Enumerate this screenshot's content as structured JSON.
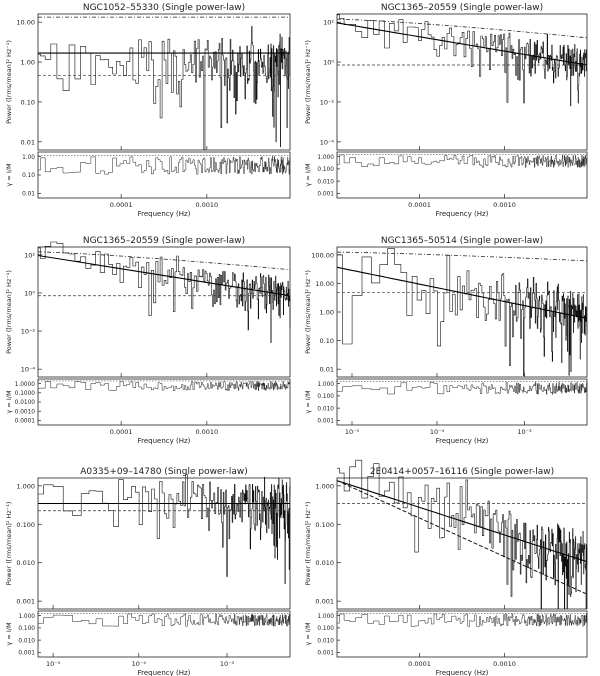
{
  "figure": {
    "panels": [
      {
        "title": "NGC1052–55330 (Single power-law)",
        "xlabel": "Frequency (Hz)",
        "ylabel_top": "Power ([rms/mean]² Hz⁻¹)",
        "ylabel_bottom": "γ = I/M",
        "x_ticks": [
          "0.0001",
          "0.0010"
        ],
        "top_ticks": [
          "10.00",
          "1.00",
          "0.10",
          "0.01"
        ],
        "bottom_ticks": [
          "1.00",
          "0.10",
          "0.01"
        ]
      },
      {
        "title": "NGC1365–20559 (Single power-law)",
        "xlabel": "Frequency (Hz)",
        "ylabel_top": "Power ([rms/mean]² Hz⁻¹)",
        "ylabel_bottom": "γ = I/M",
        "x_ticks": [
          "0.0001",
          "0.0010"
        ],
        "top_ticks": [
          "10²",
          "10⁰",
          "10⁻²",
          "10⁻⁴"
        ],
        "bottom_ticks": [
          "1.000",
          "0.100",
          "0.010",
          "0.001"
        ]
      },
      {
        "title": "NGC1365–20559 (Single power-law)",
        "xlabel": "Frequency (Hz)",
        "ylabel_top": "Power ([rms/mean]² Hz⁻¹)",
        "ylabel_bottom": "γ = I/M",
        "x_ticks": [
          "0.0001",
          "0.0010"
        ],
        "top_ticks": [
          "10²",
          "10⁰",
          "10⁻²",
          "10⁻⁴"
        ],
        "bottom_ticks": [
          "1.0000",
          "0.1000",
          "0.0100",
          "0.0010",
          "0.0001"
        ]
      },
      {
        "title": "NGC1365–50514 (Single power-law)",
        "xlabel": "Frequency (Hz)",
        "ylabel_top": "Power ([rms/mean]² Hz⁻¹)",
        "ylabel_bottom": "γ = I/M",
        "x_ticks": [
          "10⁻⁵",
          "10⁻⁴",
          "10⁻³"
        ],
        "top_ticks": [
          "100.00",
          "10.00",
          "1.00",
          "0.10",
          "0.01"
        ],
        "bottom_ticks": [
          "1.000",
          "0.100",
          "0.010",
          "0.001"
        ]
      },
      {
        "title": "A0335+09–14780 (Single power-law)",
        "xlabel": "Frequency (Hz)",
        "ylabel_top": "Power ([rms/mean]² Hz⁻¹)",
        "ylabel_bottom": "γ = I/M",
        "x_ticks": [
          "10⁻⁵",
          "10⁻⁴",
          "10⁻³"
        ],
        "top_ticks": [
          "1.000",
          "0.100",
          "0.010",
          "0.001"
        ],
        "bottom_ticks": [
          "1.000",
          "0.100",
          "0.010",
          "0.001"
        ]
      },
      {
        "title": "2E0414+0057–16116 (Single power-law)",
        "xlabel": "Frequency (Hz)",
        "ylabel_top": "Power ([rms/mean]² Hz⁻¹)",
        "ylabel_bottom": "γ = I/M",
        "x_ticks": [
          "0.0001",
          "0.0010"
        ],
        "top_ticks": [
          "1.000",
          "0.100",
          "0.010",
          "0.001"
        ],
        "bottom_ticks": [
          "1.000",
          "0.100",
          "0.010",
          "0.001"
        ]
      }
    ]
  },
  "chart_data": [
    {
      "type": "line",
      "title": "NGC1052–55330 (Single power-law)",
      "xlabel": "Frequency (Hz)",
      "ylabel": "Power ([rms/mean]² Hz⁻¹)",
      "x_scale": "log",
      "y_scale": "log",
      "xlim": [
        2e-05,
        0.006
      ],
      "ylim": [
        0.01,
        30
      ],
      "ratio_ylabel": "γ = I/M",
      "ratio_ylim": [
        0.01,
        1.5
      ],
      "model": {
        "norm": 3.0,
        "slope": 0.0
      },
      "upper_curve": {
        "start": 25,
        "end": 25
      },
      "dashed_level": 0.8,
      "periodogram": {
        "amp": 1.0,
        "mean": 1.2,
        "floor": 0.1,
        "seed": 11
      }
    },
    {
      "type": "line",
      "title": "NGC1365–20559 (Single power-law)",
      "xlabel": "Frequency (Hz)",
      "ylabel": "Power ([rms/mean]² Hz⁻¹)",
      "x_scale": "log",
      "y_scale": "log",
      "xlim": [
        2e-05,
        0.006
      ],
      "ylim": [
        1e-05,
        1000
      ],
      "ratio_ylabel": "γ = I/M",
      "ratio_ylim": [
        0.001,
        1.5
      ],
      "model": {
        "norm": 300,
        "slope": -1.0
      },
      "upper_curve": {
        "start": 500,
        "end": 40
      },
      "dashed_level": 1.0,
      "periodogram": {
        "amp": 1.3,
        "mean": 1.0,
        "floor": 0.02,
        "seed": 23
      }
    },
    {
      "type": "line",
      "title": "NGC1365–20559 (Single power-law)",
      "xlabel": "Frequency (Hz)",
      "ylabel": "Power ([rms/mean]² Hz⁻¹)",
      "x_scale": "log",
      "y_scale": "log",
      "xlim": [
        2e-05,
        0.006
      ],
      "ylim": [
        1e-05,
        1000
      ],
      "ratio_ylabel": "γ = I/M",
      "ratio_ylim": [
        0.0001,
        1.5
      ],
      "model": {
        "norm": 300,
        "slope": -1.0
      },
      "upper_curve": {
        "start": 500,
        "end": 40
      },
      "dashed_level": 1.0,
      "periodogram": {
        "amp": 1.3,
        "mean": 1.0,
        "floor": 0.01,
        "seed": 37
      }
    },
    {
      "type": "line",
      "title": "NGC1365–50514 (Single power-law)",
      "xlabel": "Frequency (Hz)",
      "ylabel": "Power ([rms/mean]² Hz⁻¹)",
      "x_scale": "log",
      "y_scale": "log",
      "xlim": [
        7e-06,
        0.006
      ],
      "ylim": [
        0.005,
        150
      ],
      "ratio_ylabel": "γ = I/M",
      "ratio_ylim": [
        0.001,
        1.5
      ],
      "model": {
        "norm": 30,
        "slope": -0.6
      },
      "upper_curve": {
        "start": 100,
        "end": 50
      },
      "dashed_level": 4.0,
      "periodogram": {
        "amp": 1.2,
        "mean": 1.0,
        "floor": 0.05,
        "seed": 41
      }
    },
    {
      "type": "line",
      "title": "A0335+09–14780 (Single power-law)",
      "xlabel": "Frequency (Hz)",
      "ylabel": "Power ([rms/mean]² Hz⁻¹)",
      "x_scale": "log",
      "y_scale": "log",
      "xlim": [
        7e-06,
        0.006
      ],
      "ylim": [
        0.0003,
        3
      ],
      "ratio_ylabel": "γ = I/M",
      "ratio_ylim": [
        0.001,
        1.5
      ],
      "model": {
        "norm": 0.5,
        "slope": 0.0
      },
      "upper_curve": null,
      "dashed_level": 0.3,
      "periodogram": {
        "amp": 1.1,
        "mean": 0.4,
        "floor": 0.02,
        "seed": 53
      }
    },
    {
      "type": "line",
      "title": "2E0414+0057–16116 (Single power-law)",
      "xlabel": "Frequency (Hz)",
      "ylabel": "Power ([rms/mean]² Hz⁻¹)",
      "x_scale": "log",
      "y_scale": "log",
      "xlim": [
        2e-05,
        0.006
      ],
      "ylim": [
        0.0003,
        3
      ],
      "ratio_ylabel": "γ = I/M",
      "ratio_ylim": [
        0.001,
        1.5
      ],
      "model": {
        "norm": 2.5,
        "slope": -1.0,
        "flatten": 0.3
      },
      "upper_curve": null,
      "dashed_level": 0.5,
      "dashed_powerlaw": {
        "norm": 2.5,
        "slope": -1.4
      },
      "periodogram": {
        "amp": 1.1,
        "mean": 0.5,
        "floor": 0.02,
        "seed": 67
      }
    }
  ]
}
